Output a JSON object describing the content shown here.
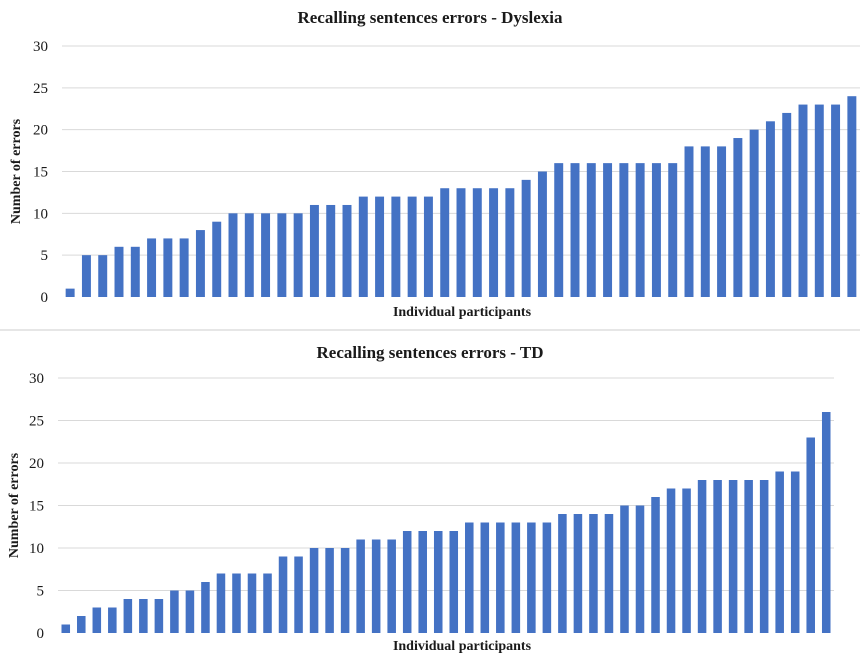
{
  "chart_data": [
    {
      "type": "bar",
      "title": "Recalling sentences errors - Dyslexia",
      "xlabel": "Individual participants",
      "ylabel": "Number of errors",
      "ylim": [
        0,
        30
      ],
      "yticks": [
        0,
        5,
        10,
        15,
        20,
        25,
        30
      ],
      "grid": true,
      "colors": {
        "bar": "#4472c4"
      },
      "values": [
        1,
        5,
        5,
        6,
        6,
        7,
        7,
        7,
        8,
        9,
        10,
        10,
        10,
        10,
        10,
        11,
        11,
        11,
        12,
        12,
        12,
        12,
        12,
        13,
        13,
        13,
        13,
        13,
        14,
        15,
        16,
        16,
        16,
        16,
        16,
        16,
        16,
        16,
        18,
        18,
        18,
        19,
        20,
        21,
        22,
        23,
        23,
        23,
        24
      ]
    },
    {
      "type": "bar",
      "title": "Recalling sentences errors - TD",
      "xlabel": "Individual participants",
      "ylabel": "Number of errors",
      "ylim": [
        0,
        30
      ],
      "yticks": [
        0,
        5,
        10,
        15,
        20,
        25,
        30
      ],
      "grid": true,
      "colors": {
        "bar": "#4472c4"
      },
      "values": [
        1,
        2,
        3,
        3,
        4,
        4,
        4,
        5,
        5,
        6,
        7,
        7,
        7,
        7,
        9,
        9,
        10,
        10,
        10,
        11,
        11,
        11,
        12,
        12,
        12,
        12,
        13,
        13,
        13,
        13,
        13,
        13,
        14,
        14,
        14,
        14,
        15,
        15,
        16,
        17,
        17,
        18,
        18,
        18,
        18,
        18,
        19,
        19,
        23,
        26
      ]
    }
  ]
}
